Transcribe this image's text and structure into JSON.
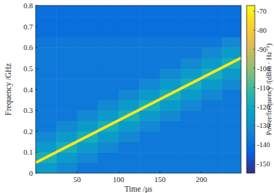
{
  "chart_data": {
    "type": "heatmap",
    "x_label": "Time /μs",
    "y_label": "Frequency /GHz",
    "xlim": [
      0,
      248
    ],
    "ylim": [
      0,
      0.8
    ],
    "xticks": [
      50,
      100,
      150,
      200
    ],
    "yticks": [
      0,
      0.1,
      0.2,
      0.3,
      0.4,
      0.5,
      0.6,
      0.7,
      0.8
    ],
    "x_bins": [
      0,
      25,
      50,
      75,
      100,
      125,
      150,
      175,
      200,
      225,
      248
    ],
    "y_bins": [
      0,
      0.05,
      0.1,
      0.15,
      0.2,
      0.25,
      0.3,
      0.35,
      0.4,
      0.45,
      0.5,
      0.55,
      0.6,
      0.65,
      0.7,
      0.75,
      0.8
    ],
    "cells": [
      [
        -126,
        -132,
        -137,
        -137,
        -137,
        -137,
        -137,
        -137,
        -137,
        -137
      ],
      [
        -118,
        -126,
        -132,
        -137,
        -137,
        -137,
        -137,
        -137,
        -137,
        -137
      ],
      [
        -126,
        -118,
        -126,
        -132,
        -137,
        -137,
        -137,
        -137,
        -137,
        -137
      ],
      [
        -132,
        -126,
        -118,
        -126,
        -132,
        -137,
        -137,
        -137,
        -137,
        -137
      ],
      [
        -137,
        -132,
        -126,
        -118,
        -126,
        -132,
        -137,
        -137,
        -137,
        -137
      ],
      [
        -137,
        -137,
        -132,
        -126,
        -118,
        -126,
        -132,
        -137,
        -137,
        -137
      ],
      [
        -137,
        -137,
        -137,
        -132,
        -126,
        -118,
        -126,
        -132,
        -137,
        -137
      ],
      [
        -137,
        -137,
        -137,
        -137,
        -132,
        -126,
        -118,
        -126,
        -132,
        -137
      ],
      [
        -137,
        -137,
        -137,
        -137,
        -137,
        -132,
        -126,
        -118,
        -126,
        -132
      ],
      [
        -137,
        -137,
        -137,
        -137,
        -137,
        -137,
        -132,
        -126,
        -118,
        -126
      ],
      [
        -137,
        -137,
        -137,
        -137,
        -137,
        -137,
        -137,
        -132,
        -126,
        -118
      ],
      [
        -137,
        -137,
        -137,
        -137,
        -137,
        -137,
        -137,
        -137,
        -132,
        -126
      ],
      [
        -137,
        -137,
        -137,
        -137,
        -137,
        -137,
        -137,
        -137,
        -137,
        -132
      ],
      [
        -140,
        -140,
        -140,
        -140,
        -140,
        -140,
        -140,
        -140,
        -140,
        -140
      ],
      [
        -140,
        -140,
        -140,
        -140,
        -140,
        -140,
        -140,
        -140,
        -140,
        -140
      ],
      [
        -140,
        -140,
        -140,
        -140,
        -140,
        -140,
        -140,
        -140,
        -140,
        -140
      ]
    ],
    "x": [
      0,
      248
    ],
    "series": [
      {
        "type": "line",
        "color": "#f7e81c",
        "values": [
          0.05,
          0.55
        ]
      }
    ],
    "colorbar": {
      "label": "Power/frequency /(dBm · Hz⁻¹)",
      "range": [
        -155,
        -67
      ],
      "ticks": [
        -150,
        -140,
        -130,
        -120,
        -110,
        -100,
        -90,
        -80,
        -70
      ]
    }
  }
}
